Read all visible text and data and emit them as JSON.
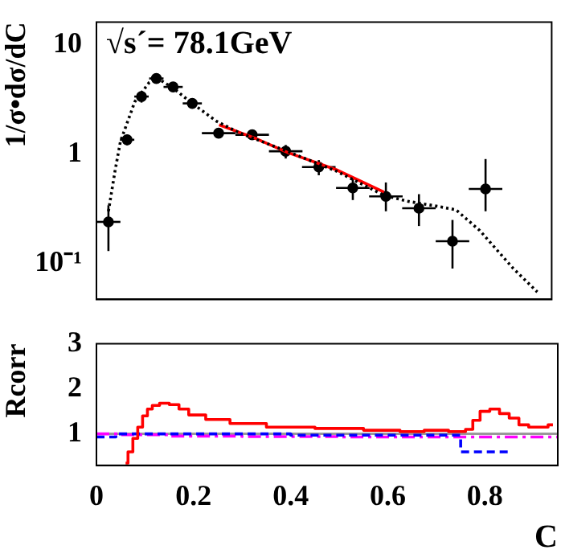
{
  "chart_data": [
    {
      "type": "scatter",
      "ylabel": "1/σ•dσ/dC",
      "annotations": [
        "√s´= 78.1GeV"
      ],
      "xlim": [
        0,
        0.95
      ],
      "xticks": [
        0,
        0.2,
        0.4,
        0.6,
        0.8
      ],
      "ylim": [
        0.047,
        16
      ],
      "yticks": [
        {
          "value": 0.1,
          "label": "10⁻¹"
        },
        1,
        10
      ],
      "log": "y",
      "tick_labels": "y",
      "grid": false,
      "legend": false,
      "series": [
        {
          "type": "line",
          "color": "#000000",
          "line_style": "dotted",
          "marker": "none",
          "x": [
            0.025,
            0.039,
            0.05,
            0.08,
            0.11,
            0.125,
            0.16,
            0.2,
            0.25,
            0.3,
            0.4,
            0.5,
            0.6,
            0.65,
            0.7,
            0.75,
            0.8,
            0.87,
            0.92
          ],
          "values": [
            0.3,
            0.71,
            1.3,
            3,
            4.5,
            5,
            4,
            2.9,
            2,
            1.55,
            1.05,
            0.7,
            0.42,
            0.37,
            0.34,
            0.31,
            0.2,
            0.09,
            0.055
          ]
        },
        {
          "type": "line",
          "color": "#ff0000",
          "line_style": "solid",
          "marker": "none",
          "x": [
            0.256,
            0.33,
            0.4,
            0.5,
            0.6
          ],
          "values": [
            1.85,
            1.4,
            1.03,
            0.72,
            0.45
          ]
        },
        {
          "color": "#000000",
          "marker": "circle",
          "x": [
            0.025,
            0.064,
            0.094,
            0.125,
            0.16,
            0.2,
            0.255,
            0.325,
            0.395,
            0.464,
            0.535,
            0.604,
            0.673,
            0.743,
            0.812
          ],
          "values": [
            0.24,
            1.35,
            3.35,
            4.9,
            4.1,
            2.9,
            1.55,
            1.5,
            1.06,
            0.76,
            0.49,
            0.41,
            0.32,
            0.16,
            0.48
          ],
          "errors": [
            [
              0.13,
              0.34
            ],
            0.15,
            0.4,
            0.5,
            0.4,
            0.3,
            0.15,
            0.15,
            0.15,
            0.12,
            [
              0.38,
              0.6
            ],
            [
              0.3,
              0.55
            ],
            [
              0.22,
              0.43
            ],
            [
              0.09,
              0.25
            ],
            [
              0.3,
              0.9
            ]
          ],
          "xerrors": [
            0.025,
            0.015,
            0.015,
            0.015,
            0.02,
            0.02,
            0.035,
            0.035,
            0.035,
            0.035,
            0.035,
            0.035,
            0.035,
            0.035,
            0.035
          ]
        }
      ]
    },
    {
      "type": "step",
      "xlabel": "C",
      "ylabel": "Rcorr",
      "xlim": [
        0,
        0.95
      ],
      "xticks": [
        0,
        0.2,
        0.4,
        0.6,
        0.8
      ],
      "ylim": [
        0.3,
        3
      ],
      "yticks": [
        1,
        2,
        3
      ],
      "grid": false,
      "legend": false,
      "ref_lines": [
        {
          "axis": "y",
          "value": 1,
          "color": "#999999"
        }
      ],
      "series": [
        {
          "color": "#ff0000",
          "line_style": "solid",
          "x": [
            0.06,
            0.07,
            0.08,
            0.09,
            0.1,
            0.11,
            0.12,
            0.14,
            0.16,
            0.18,
            0.2,
            0.25,
            0.3,
            0.4,
            0.5,
            0.6,
            0.65,
            0.7,
            0.75,
            0.77,
            0.78,
            0.8,
            0.82,
            0.84,
            0.86,
            0.88,
            0.9,
            0.92,
            0.94
          ],
          "values": [
            0.35,
            0.6,
            0.9,
            1.15,
            1.4,
            1.55,
            1.63,
            1.68,
            1.65,
            1.55,
            1.42,
            1.32,
            1.23,
            1.15,
            1.12,
            1.08,
            1.05,
            1.08,
            1.05,
            1.1,
            1.3,
            1.5,
            1.55,
            1.45,
            1.35,
            1.2,
            1.15,
            1.15,
            1.2
          ]
        },
        {
          "color": "#0000ff",
          "line_style": "dashed",
          "x": [
            0,
            0.08,
            0.72,
            0.78,
            0.85
          ],
          "values": [
            0.93,
            1,
            0.97,
            0.6,
            0.6
          ]
        },
        {
          "color": "#ff00ff",
          "line_style": "dashdot",
          "x": [
            0,
            0.1,
            0.2,
            0.4,
            0.6,
            0.8,
            0.95
          ],
          "values": [
            1,
            0.98,
            0.95,
            0.94,
            0.93,
            0.93,
            0.93
          ]
        }
      ]
    }
  ]
}
